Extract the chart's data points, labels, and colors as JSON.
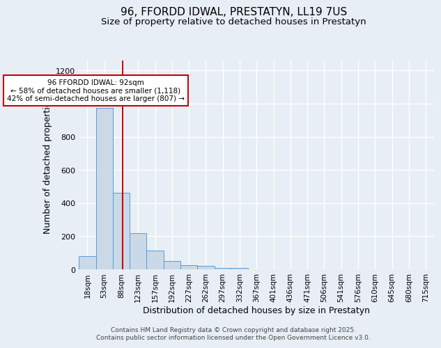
{
  "title": "96, FFORDD IDWAL, PRESTATYN, LL19 7US",
  "subtitle": "Size of property relative to detached houses in Prestatyn",
  "xlabel": "Distribution of detached houses by size in Prestatyn",
  "ylabel": "Number of detached properties",
  "bar_labels": [
    "18sqm",
    "53sqm",
    "88sqm",
    "123sqm",
    "157sqm",
    "192sqm",
    "227sqm",
    "262sqm",
    "297sqm",
    "332sqm",
    "367sqm",
    "401sqm",
    "436sqm",
    "471sqm",
    "506sqm",
    "541sqm",
    "576sqm",
    "610sqm",
    "645sqm",
    "680sqm",
    "715sqm"
  ],
  "bar_values": [
    80,
    975,
    460,
    220,
    115,
    50,
    25,
    20,
    10,
    10,
    0,
    0,
    0,
    0,
    0,
    0,
    0,
    0,
    0,
    0,
    0
  ],
  "bar_color": "#c9d9e8",
  "bar_edgecolor": "#5b9bd5",
  "vline_x": 2.08,
  "vline_color": "#cc0000",
  "annotation_text": "96 FFORDD IDWAL: 92sqm\n← 58% of detached houses are smaller (1,118)\n42% of semi-detached houses are larger (807) →",
  "annotation_box_color": "#cc0000",
  "annotation_facecolor": "white",
  "ylim": [
    0,
    1260
  ],
  "yticks": [
    0,
    200,
    400,
    600,
    800,
    1000,
    1200
  ],
  "background_color": "#e8eef5",
  "grid_color": "white",
  "title_fontsize": 11,
  "subtitle_fontsize": 9.5,
  "tick_fontsize": 7.5,
  "xlabel_fontsize": 9,
  "ylabel_fontsize": 9,
  "footer_line1": "Contains HM Land Registry data © Crown copyright and database right 2025.",
  "footer_line2": "Contains public sector information licensed under the Open Government Licence v3.0."
}
